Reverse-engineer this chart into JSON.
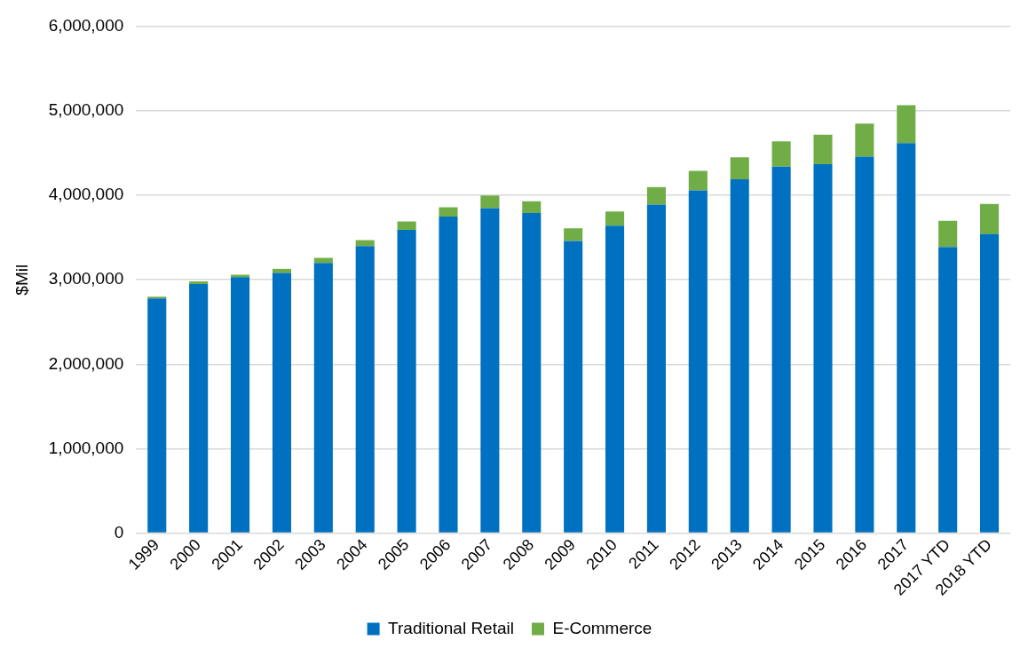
{
  "chart_data": {
    "type": "bar",
    "stacked": true,
    "ylabel": "$Mil",
    "categories": [
      "1999",
      "2000",
      "2001",
      "2002",
      "2003",
      "2004",
      "2005",
      "2006",
      "2007",
      "2008",
      "2009",
      "2010",
      "2011",
      "2012",
      "2013",
      "2014",
      "2015",
      "2016",
      "2017",
      "2017 YTD",
      "2018 YTD"
    ],
    "series": [
      {
        "name": "Traditional Retail",
        "color": "#0070c0",
        "values": [
          2780000,
          2950000,
          3030000,
          3080000,
          3200000,
          3400000,
          3590000,
          3750000,
          3850000,
          3790000,
          3460000,
          3640000,
          3890000,
          4060000,
          4190000,
          4340000,
          4370000,
          4460000,
          4620000,
          3390000,
          3540000
        ]
      },
      {
        "name": "E-Commerce",
        "color": "#70ad47",
        "values": [
          20000,
          30000,
          30000,
          50000,
          60000,
          70000,
          100000,
          110000,
          150000,
          140000,
          150000,
          170000,
          210000,
          230000,
          260000,
          300000,
          350000,
          390000,
          450000,
          310000,
          360000
        ]
      }
    ],
    "ylim": [
      0,
      6000000
    ],
    "yticks": [
      0,
      {
        "value": 1000000,
        "label": "1,000,000"
      },
      {
        "value": 2000000,
        "label": "2,000,000"
      },
      {
        "value": 3000000,
        "label": "3,000,000"
      },
      {
        "value": 4000000,
        "label": "4,000,000"
      },
      {
        "value": 5000000,
        "label": "5,000,000"
      },
      {
        "value": 6000000,
        "label": "6,000,000"
      }
    ],
    "grid": "y",
    "legend": "bottom"
  }
}
